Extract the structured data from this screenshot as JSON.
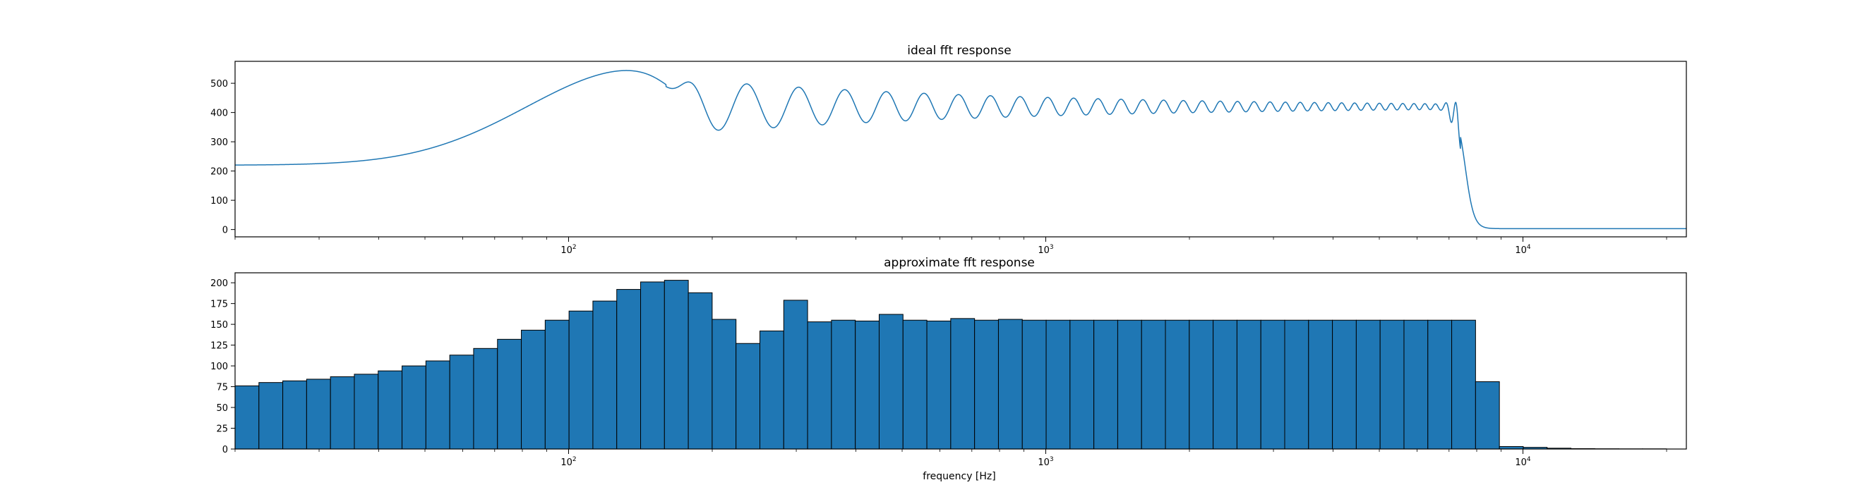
{
  "chart_data": [
    {
      "type": "line",
      "title": "ideal fft response",
      "xlabel": "",
      "ylabel": "",
      "xscale": "log",
      "xlim": [
        20,
        22000
      ],
      "ylim": [
        -25,
        575
      ],
      "yticks": [
        "0",
        "100",
        "200",
        "300",
        "400",
        "500"
      ],
      "xticks": [
        "10^2",
        "10^3",
        "10^4"
      ],
      "grid": false,
      "color": "#1f77b4",
      "curve": {
        "start_level": 220,
        "peak": {
          "x": 140,
          "y": 550
        },
        "ripple_center": 420,
        "ripple_minima": [
          [
            205,
            330
          ],
          [
            290,
            358
          ],
          [
            355,
            380
          ]
        ],
        "ripple_maxima": [
          [
            255,
            495
          ],
          [
            320,
            478
          ],
          [
            395,
            467
          ]
        ],
        "edge_peak": {
          "x": 7300,
          "y": 495
        },
        "edge_dip": {
          "x": 7250,
          "y": 385
        },
        "cutoff": {
          "x": 7400,
          "to_y": 5
        },
        "end_level": 3
      }
    },
    {
      "type": "bar",
      "title": "approximate fft response",
      "xlabel": "frequency [Hz]",
      "ylabel": "",
      "xscale": "log",
      "xlim": [
        20,
        22000
      ],
      "ylim": [
        0,
        212
      ],
      "yticks": [
        "0",
        "25",
        "50",
        "75",
        "100",
        "125",
        "150",
        "175",
        "200"
      ],
      "xticks": [
        "10^2",
        "10^3",
        "10^4"
      ],
      "grid": false,
      "color": "#1f77b4",
      "edgecolor": "#000000",
      "bins": {
        "start": 20,
        "ratio": 1.122,
        "count": 60
      },
      "values": [
        76,
        80,
        82,
        84,
        87,
        90,
        94,
        100,
        106,
        113,
        121,
        132,
        143,
        155,
        166,
        178,
        192,
        201,
        203,
        188,
        156,
        127,
        142,
        179,
        153,
        155,
        154,
        162,
        155,
        154,
        157,
        155,
        156,
        155,
        155,
        155,
        155,
        155,
        155,
        155,
        155,
        155,
        155,
        155,
        155,
        155,
        155,
        155,
        155,
        155,
        155,
        155,
        81,
        3,
        2,
        1,
        0.5,
        0.3,
        0.2,
        0.2
      ]
    }
  ]
}
